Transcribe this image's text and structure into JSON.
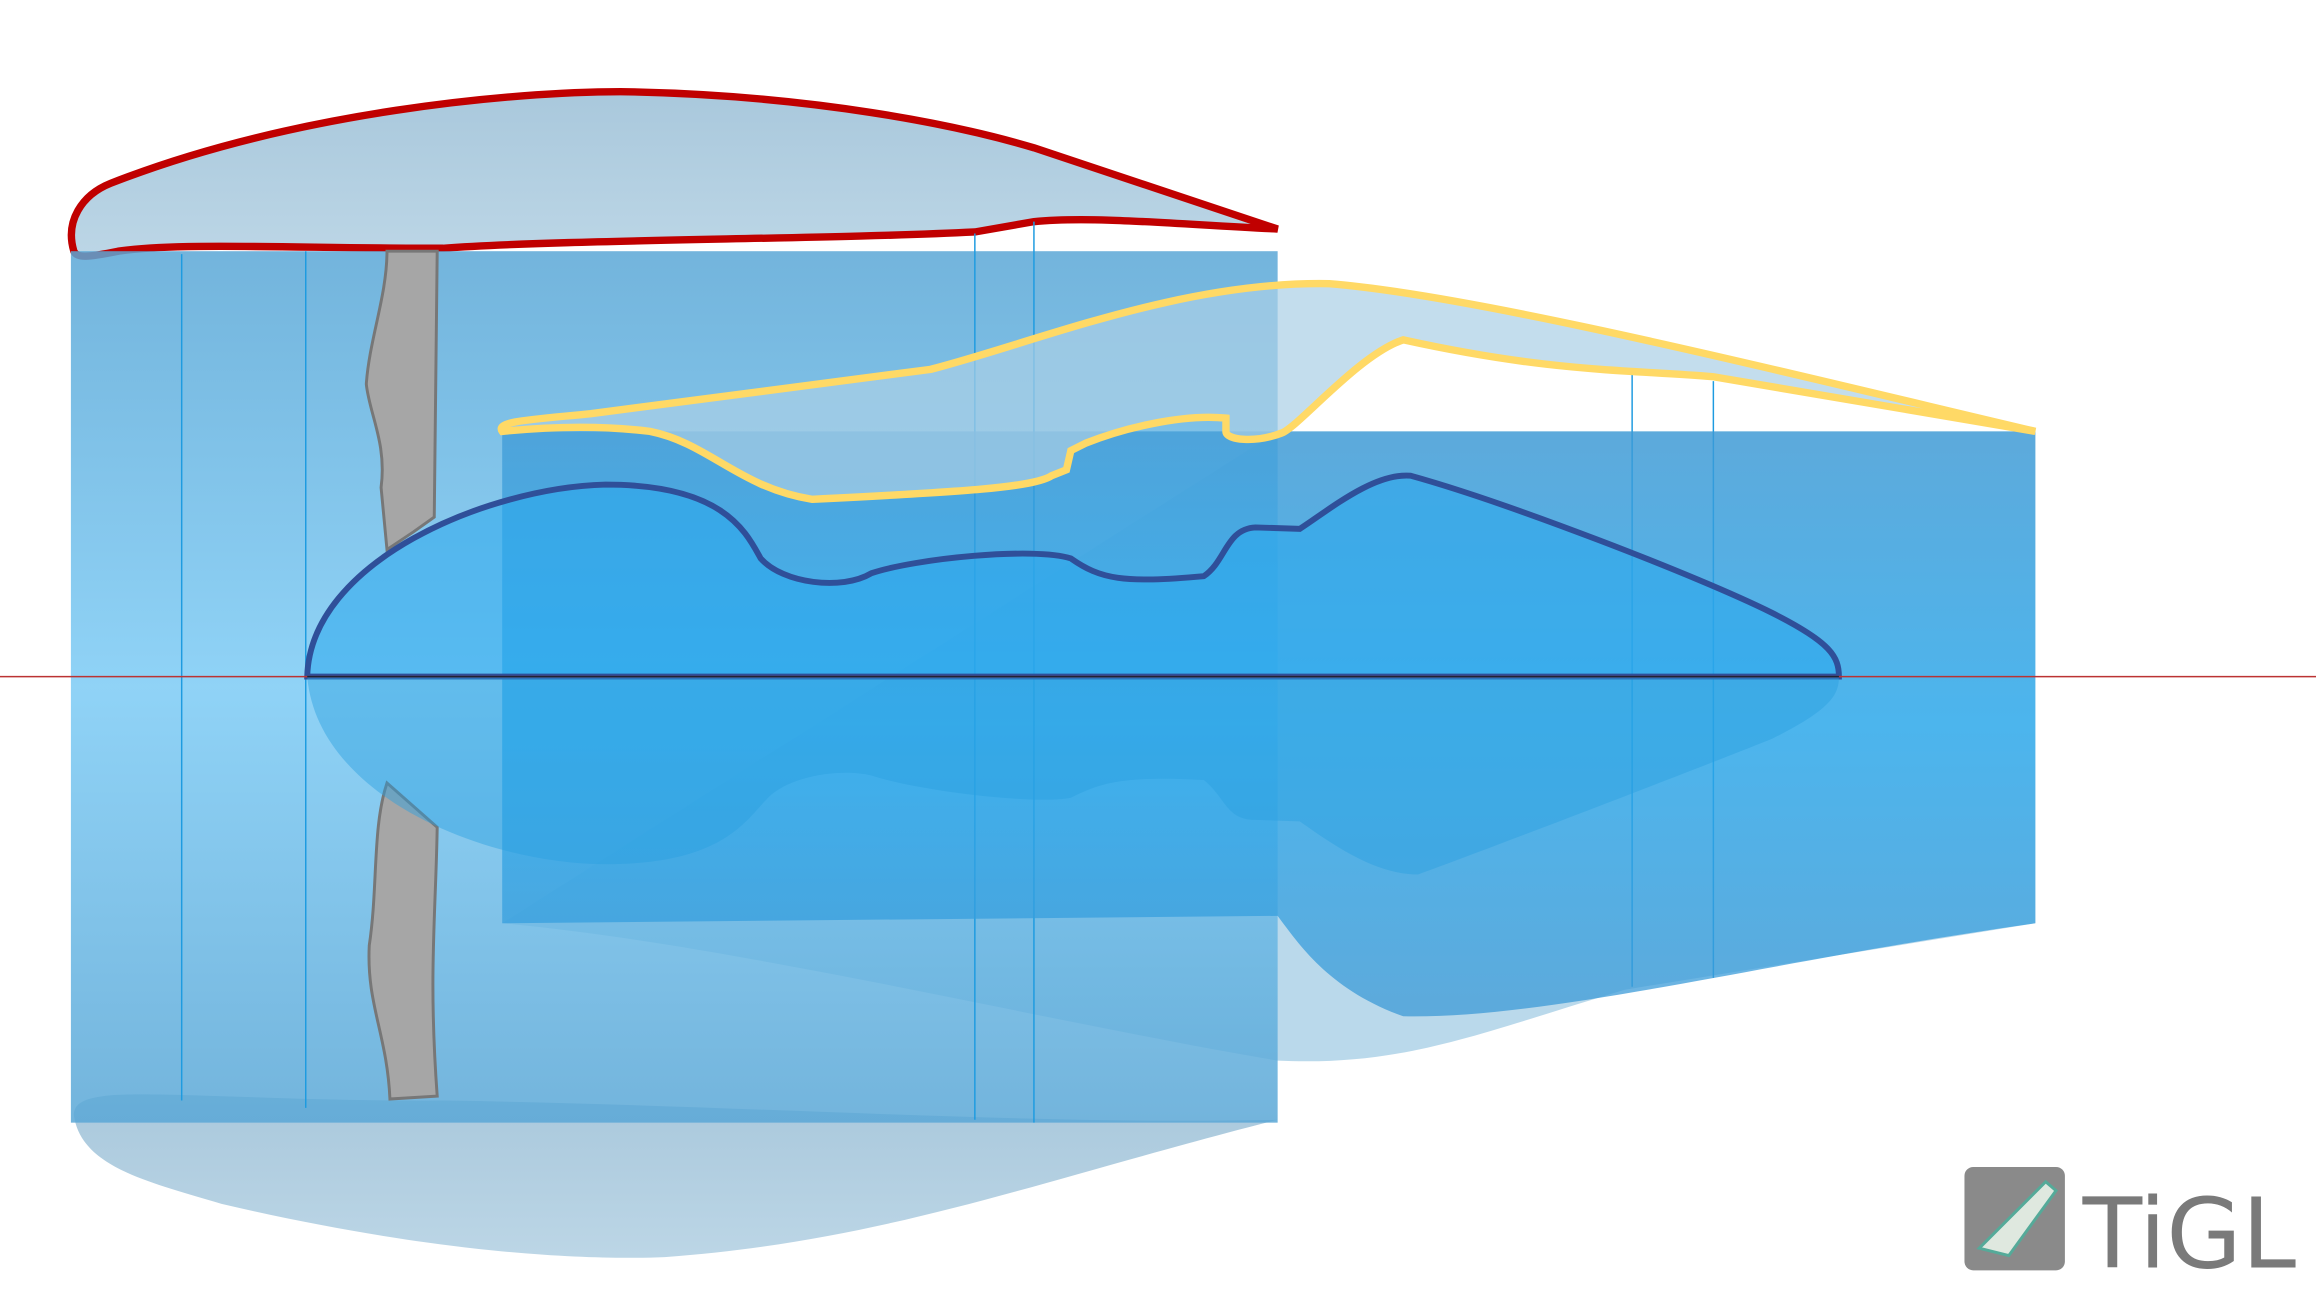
{
  "logo": {
    "text": "TiGL"
  }
}
